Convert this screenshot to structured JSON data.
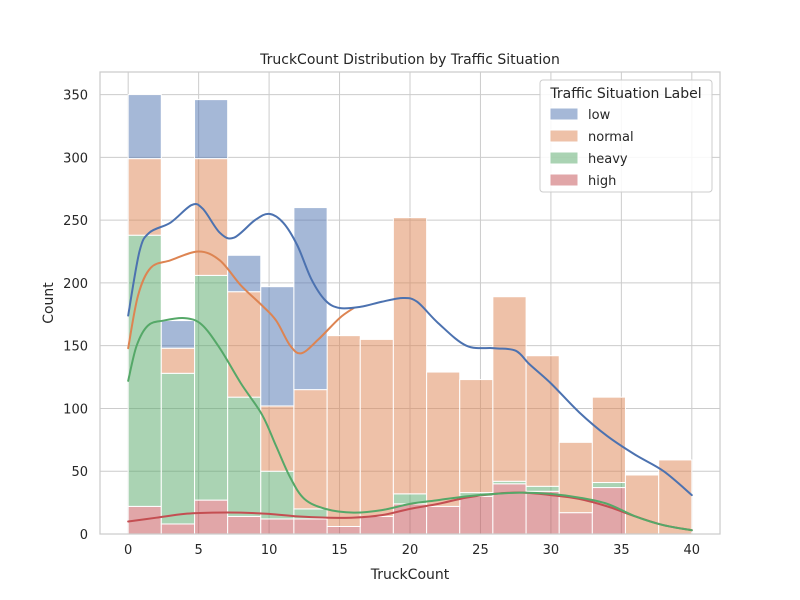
{
  "chart_data": {
    "type": "bar",
    "subtype": "stacked-histogram-with-kde",
    "title": "TruckCount Distribution by Traffic Situation",
    "xlabel": "TruckCount",
    "ylabel": "Count",
    "xlim": [
      -2,
      42
    ],
    "ylim": [
      0,
      368
    ],
    "xticks": [
      0,
      5,
      10,
      15,
      20,
      25,
      30,
      35,
      40
    ],
    "yticks": [
      0,
      50,
      100,
      150,
      200,
      250,
      300,
      350
    ],
    "grid": true,
    "legend": {
      "title": "Traffic Situation Label",
      "placement": "top-right"
    },
    "bin_edges": [
      0,
      2.35,
      4.71,
      7.06,
      9.41,
      11.76,
      14.12,
      16.47,
      18.82,
      21.18,
      23.53,
      25.88,
      28.24,
      30.59,
      32.94,
      35.29,
      37.65,
      40
    ],
    "series": [
      {
        "name": "high",
        "color": "#c44e52",
        "counts": [
          22,
          8,
          27,
          14,
          12,
          12,
          6,
          14,
          24,
          22,
          30,
          40,
          34,
          17,
          37,
          0,
          0
        ],
        "kde": [
          [
            0,
            10
          ],
          [
            2,
            13
          ],
          [
            4,
            16
          ],
          [
            6,
            17
          ],
          [
            8,
            17
          ],
          [
            10,
            16
          ],
          [
            12,
            14
          ],
          [
            14,
            13
          ],
          [
            16,
            13
          ],
          [
            18,
            15
          ],
          [
            20,
            20
          ],
          [
            22,
            24
          ],
          [
            24,
            29
          ],
          [
            26,
            32
          ],
          [
            28,
            33
          ],
          [
            30,
            31
          ],
          [
            32,
            28
          ],
          [
            34,
            22
          ],
          [
            36,
            14
          ],
          [
            38,
            7
          ],
          [
            40,
            3
          ]
        ]
      },
      {
        "name": "heavy",
        "color": "#55a868",
        "counts": [
          216,
          120,
          179,
          95,
          38,
          8,
          0,
          0,
          8,
          0,
          3,
          2,
          4,
          0,
          4,
          0,
          0
        ],
        "kde": [
          [
            0,
            122
          ],
          [
            0.6,
            150
          ],
          [
            1.4,
            166
          ],
          [
            2.5,
            170
          ],
          [
            4,
            172
          ],
          [
            5.2,
            167
          ],
          [
            6.5,
            148
          ],
          [
            8,
            120
          ],
          [
            9.5,
            95
          ],
          [
            10.5,
            70
          ],
          [
            11.5,
            45
          ],
          [
            12.5,
            28
          ],
          [
            14,
            20
          ],
          [
            16,
            17
          ],
          [
            18,
            19
          ],
          [
            20,
            24
          ],
          [
            22,
            27
          ],
          [
            24,
            30
          ],
          [
            26,
            32
          ],
          [
            28,
            33
          ],
          [
            30,
            32
          ],
          [
            32,
            29
          ],
          [
            34,
            24
          ],
          [
            36,
            14
          ],
          [
            38,
            7
          ],
          [
            40,
            3
          ]
        ]
      },
      {
        "name": "normal",
        "color": "#dd8452",
        "counts": [
          61,
          20,
          93,
          84,
          52,
          95,
          152,
          141,
          220,
          107,
          90,
          147,
          104,
          56,
          68,
          47,
          59
        ],
        "kde": [
          [
            0,
            148
          ],
          [
            0.7,
            190
          ],
          [
            1.6,
            212
          ],
          [
            3,
            218
          ],
          [
            5,
            225
          ],
          [
            6.5,
            218
          ],
          [
            8,
            198
          ],
          [
            9.5,
            182
          ],
          [
            10.5,
            170
          ],
          [
            11.5,
            150
          ],
          [
            12.3,
            144
          ],
          [
            13.5,
            155
          ],
          [
            15,
            172
          ],
          [
            16,
            180
          ]
        ]
      },
      {
        "name": "low",
        "color": "#4c72b0",
        "counts": [
          51,
          22,
          47,
          29,
          95,
          145,
          0,
          0,
          0,
          0,
          0,
          0,
          0,
          0,
          0,
          0,
          0
        ],
        "kde": [
          [
            0,
            174
          ],
          [
            0.8,
            225
          ],
          [
            1.5,
            240
          ],
          [
            3,
            248
          ],
          [
            4.5,
            262
          ],
          [
            5.3,
            259
          ],
          [
            6.5,
            240
          ],
          [
            7.5,
            236
          ],
          [
            9,
            250
          ],
          [
            10,
            255
          ],
          [
            11,
            248
          ],
          [
            12,
            230
          ],
          [
            13,
            203
          ],
          [
            14,
            186
          ],
          [
            15,
            180
          ],
          [
            16.5,
            181
          ],
          [
            18,
            185
          ],
          [
            19.5,
            188
          ],
          [
            20.5,
            185
          ],
          [
            22,
            168
          ],
          [
            24,
            150
          ],
          [
            26,
            148
          ],
          [
            27.5,
            146
          ],
          [
            28.5,
            135
          ],
          [
            30,
            120
          ],
          [
            32,
            97
          ],
          [
            34,
            78
          ],
          [
            36,
            63
          ],
          [
            38,
            50
          ],
          [
            40,
            31
          ]
        ]
      }
    ]
  }
}
